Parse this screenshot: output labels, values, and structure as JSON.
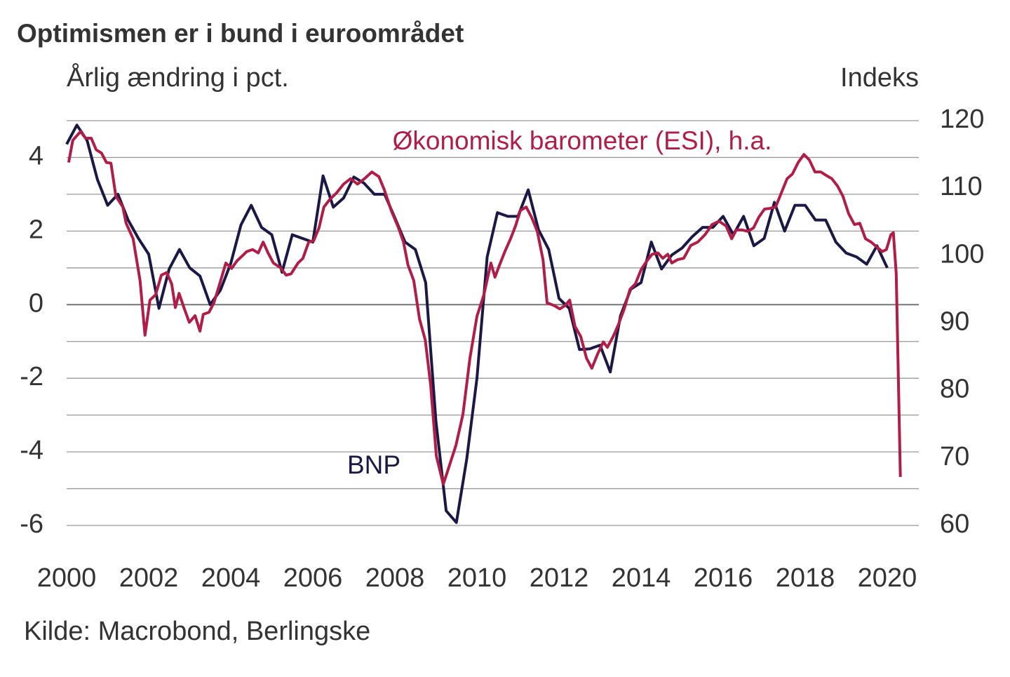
{
  "chart_data": {
    "type": "line",
    "title": "Optimismen er i bund i euroområdet",
    "ylabel": "Årlig ændring i pct.",
    "y2label": "Indeks",
    "source": "Kilde: Macrobond, Berlingske",
    "xlim": [
      2000,
      2020.77
    ],
    "xticks": [
      2000,
      2002,
      2004,
      2006,
      2008,
      2010,
      2012,
      2014,
      2016,
      2018,
      2020
    ],
    "ylim": [
      -6,
      5
    ],
    "yticks": [
      -6,
      -4,
      -2,
      0,
      2,
      4
    ],
    "ygrid": [
      -6,
      -5,
      -4,
      -3,
      -2,
      -1,
      0,
      1,
      2,
      3,
      4,
      5
    ],
    "y2lim": [
      60,
      120
    ],
    "y2ticks": [
      60,
      70,
      80,
      90,
      100,
      110,
      120
    ],
    "grid": true,
    "series": [
      {
        "name": "BNP",
        "color": "#1c1846",
        "x": [
          2000,
          2000.25,
          2000.5,
          2000.75,
          2001,
          2001.25,
          2001.5,
          2001.75,
          2002,
          2002.25,
          2002.5,
          2002.75,
          2003,
          2003.25,
          2003.5,
          2003.75,
          2004,
          2004.25,
          2004.5,
          2004.75,
          2005,
          2005.25,
          2005.5,
          2005.75,
          2006,
          2006.25,
          2006.5,
          2006.75,
          2007,
          2007.25,
          2007.5,
          2007.75,
          2008,
          2008.25,
          2008.5,
          2008.75,
          2009,
          2009.25,
          2009.5,
          2009.75,
          2010,
          2010.25,
          2010.5,
          2010.75,
          2011,
          2011.25,
          2011.5,
          2011.75,
          2012,
          2012.25,
          2012.5,
          2012.75,
          2013,
          2013.25,
          2013.5,
          2013.75,
          2014,
          2014.25,
          2014.5,
          2014.75,
          2015,
          2015.25,
          2015.5,
          2015.75,
          2016,
          2016.25,
          2016.5,
          2016.75,
          2017,
          2017.25,
          2017.5,
          2017.75,
          2018,
          2018.25,
          2018.5,
          2018.75,
          2019,
          2019.25,
          2019.5,
          2019.75,
          2020
        ],
        "values": [
          4.36,
          4.88,
          4.46,
          3.4,
          2.7,
          3.0,
          2.3,
          1.8,
          1.37,
          -0.1,
          0.97,
          1.5,
          1.0,
          0.78,
          0,
          0.4,
          1.12,
          2.17,
          2.7,
          2.1,
          1.9,
          0.88,
          1.9,
          1.8,
          1.7,
          3.5,
          2.65,
          2.9,
          3.47,
          3.3,
          3.0,
          3.0,
          2.36,
          1.7,
          1.5,
          0.6,
          -3.16,
          -5.6,
          -5.92,
          -4.2,
          -2.0,
          1.3,
          2.5,
          2.4,
          2.4,
          3.12,
          2.04,
          1.5,
          0.17,
          -0.1,
          -1.22,
          -1.2,
          -1.1,
          -1.83,
          -0.3,
          0.42,
          0.6,
          1.7,
          0.97,
          1.35,
          1.54,
          1.85,
          2.1,
          2.1,
          2.4,
          1.9,
          2.4,
          1.6,
          1.8,
          2.78,
          2.0,
          2.7,
          2.7,
          2.3,
          2.3,
          1.7,
          1.4,
          1.3,
          1.1,
          1.6,
          1.0
        ]
      },
      {
        "name": "Økonomisk barometer (ESI), h.a.",
        "color": "#b01e48",
        "axis": "y2",
        "x": [
          2000.05,
          2000.15,
          2000.34,
          2000.46,
          2000.6,
          2000.72,
          2000.85,
          2000.97,
          2001.08,
          2001.2,
          2001.37,
          2001.45,
          2001.62,
          2001.79,
          2001.91,
          2002.03,
          2002.17,
          2002.31,
          2002.44,
          2002.56,
          2002.65,
          2002.74,
          2002.87,
          2002.99,
          2003.13,
          2003.25,
          2003.33,
          2003.47,
          2003.59,
          2003.73,
          2003.88,
          2004.02,
          2004.15,
          2004.27,
          2004.39,
          2004.53,
          2004.67,
          2004.79,
          2004.91,
          2005.04,
          2005.21,
          2005.35,
          2005.47,
          2005.64,
          2005.76,
          2005.9,
          2006.02,
          2006.15,
          2006.27,
          2006.41,
          2006.58,
          2006.75,
          2006.92,
          2007.09,
          2007.26,
          2007.44,
          2007.61,
          2007.74,
          2007.91,
          2008.09,
          2008.21,
          2008.32,
          2008.46,
          2008.6,
          2008.74,
          2008.87,
          2009.01,
          2009.18,
          2009.32,
          2009.49,
          2009.66,
          2009.83,
          2010.0,
          2010.17,
          2010.34,
          2010.44,
          2010.55,
          2010.68,
          2010.82,
          2010.94,
          2011.06,
          2011.2,
          2011.33,
          2011.47,
          2011.61,
          2011.71,
          2011.88,
          2012.02,
          2012.15,
          2012.26,
          2012.39,
          2012.53,
          2012.67,
          2012.8,
          2012.94,
          2013.08,
          2013.18,
          2013.32,
          2013.45,
          2013.59,
          2013.73,
          2013.86,
          2014.0,
          2014.14,
          2014.27,
          2014.41,
          2014.53,
          2014.65,
          2014.75,
          2014.89,
          2015.04,
          2015.21,
          2015.38,
          2015.56,
          2015.73,
          2015.9,
          2016.07,
          2016.21,
          2016.32,
          2016.46,
          2016.6,
          2016.74,
          2016.87,
          2017.01,
          2017.15,
          2017.28,
          2017.42,
          2017.56,
          2017.69,
          2017.83,
          2017.97,
          2018.1,
          2018.24,
          2018.38,
          2018.51,
          2018.65,
          2018.79,
          2018.92,
          2019.06,
          2019.2,
          2019.33,
          2019.47,
          2019.61,
          2019.74,
          2019.88,
          2019.98,
          2020.09,
          2020.15,
          2020.22,
          2020.32
        ],
        "values": [
          113.8,
          117.1,
          118.4,
          117.4,
          117.4,
          115.7,
          115.2,
          113.8,
          113.7,
          108.8,
          107.2,
          104.8,
          102.5,
          96.3,
          88.2,
          93.4,
          94.2,
          97.1,
          97.5,
          95.8,
          92.3,
          94.4,
          92.1,
          90.1,
          91.1,
          88.8,
          91.3,
          91.6,
          93.0,
          95.8,
          98.9,
          98.1,
          99.2,
          99.9,
          100.6,
          100.9,
          100.4,
          102.0,
          100.4,
          98.9,
          98.2,
          97.1,
          97.3,
          98.9,
          99.6,
          102.0,
          102.2,
          104.1,
          107.2,
          108.3,
          109.3,
          110.6,
          111.4,
          110.6,
          111.4,
          112.4,
          111.7,
          109.8,
          106.7,
          104.1,
          102.0,
          98.6,
          96.3,
          90.6,
          87.5,
          80.9,
          70.3,
          66.1,
          68.7,
          71.9,
          76.5,
          84.8,
          91.0,
          94.2,
          98.9,
          96.8,
          98.6,
          100.6,
          102.5,
          104.4,
          106.7,
          107.2,
          105.7,
          103.6,
          99.4,
          93.0,
          92.6,
          92.1,
          92.6,
          93.4,
          89.5,
          88.0,
          84.8,
          83.3,
          85.4,
          87.2,
          86.4,
          88.0,
          89.8,
          92.1,
          95.0,
          95.8,
          97.9,
          99.2,
          100.2,
          100.4,
          99.6,
          100.2,
          98.9,
          99.4,
          99.6,
          101.5,
          102.0,
          103.1,
          104.6,
          105.1,
          104.4,
          102.5,
          103.8,
          103.8,
          103.6,
          104.1,
          105.7,
          106.9,
          107.0,
          107.2,
          109.3,
          111.4,
          112.1,
          113.8,
          115.0,
          114.2,
          112.4,
          112.4,
          111.9,
          111.4,
          110.3,
          108.8,
          106.2,
          104.6,
          104.8,
          102.5,
          102.0,
          101.3,
          100.6,
          100.9,
          103.1,
          103.4,
          97.3,
          67.2
        ]
      }
    ]
  }
}
